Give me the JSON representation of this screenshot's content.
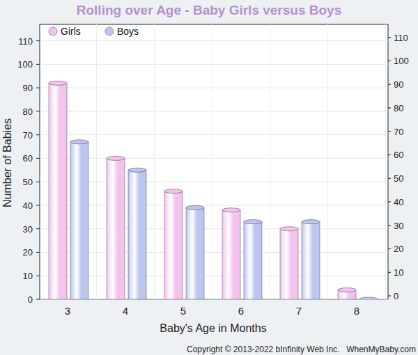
{
  "chart_data": {
    "type": "bar",
    "title": "Rolling over Age - Baby Girls versus Boys",
    "x_label": "Baby's Age in Months",
    "y_label": "Number of Babies",
    "categories": [
      "3",
      "4",
      "5",
      "6",
      "7",
      "8"
    ],
    "series": [
      {
        "name": "Girls",
        "color": "#f3c3ee",
        "values": [
          92,
          60,
          46,
          38,
          30,
          4
        ]
      },
      {
        "name": "Boys",
        "color": "#bcc6ee",
        "values": [
          67,
          55,
          39,
          33,
          33,
          0
        ]
      }
    ],
    "ylim": [
      0,
      117
    ],
    "yticks": [
      0,
      10,
      20,
      30,
      40,
      50,
      60,
      70,
      80,
      90,
      100,
      110
    ],
    "y2lim": [
      0,
      117
    ],
    "y2ticks": [
      0,
      10,
      20,
      30,
      40,
      50,
      60,
      70,
      80,
      90,
      100,
      110
    ],
    "grid": true,
    "legend": "top-left",
    "annotations": [
      "Copyright © 2013-2022 bInfinity Web Inc.",
      "WhenMyBaby.com"
    ]
  }
}
